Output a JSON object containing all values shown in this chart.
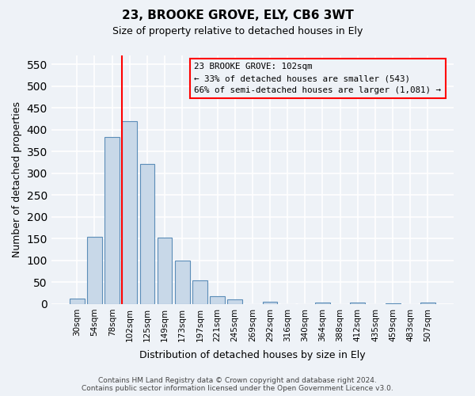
{
  "title": "23, BROOKE GROVE, ELY, CB6 3WT",
  "subtitle": "Size of property relative to detached houses in Ely",
  "xlabel": "Distribution of detached houses by size in Ely",
  "ylabel": "Number of detached properties",
  "bar_labels": [
    "30sqm",
    "54sqm",
    "78sqm",
    "102sqm",
    "125sqm",
    "149sqm",
    "173sqm",
    "197sqm",
    "221sqm",
    "245sqm",
    "269sqm",
    "292sqm",
    "316sqm",
    "340sqm",
    "364sqm",
    "388sqm",
    "412sqm",
    "435sqm",
    "459sqm",
    "483sqm",
    "507sqm"
  ],
  "bar_values": [
    13,
    155,
    383,
    420,
    322,
    153,
    100,
    55,
    18,
    10,
    0,
    5,
    0,
    0,
    3,
    0,
    3,
    0,
    2,
    0,
    3
  ],
  "bar_color": "#c8d8e8",
  "bar_edge_color": "#5b8db8",
  "ylim": [
    0,
    570
  ],
  "yticks": [
    0,
    50,
    100,
    150,
    200,
    250,
    300,
    350,
    400,
    450,
    500,
    550
  ],
  "red_line_index": 3,
  "annotation_line1": "23 BROOKE GROVE: 102sqm",
  "annotation_line2": "← 33% of detached houses are smaller (543)",
  "annotation_line3": "66% of semi-detached houses are larger (1,081) →",
  "footer": "Contains HM Land Registry data © Crown copyright and database right 2024.\nContains public sector information licensed under the Open Government Licence v3.0.",
  "bg_color": "#eef2f7",
  "grid_color": "#ffffff"
}
